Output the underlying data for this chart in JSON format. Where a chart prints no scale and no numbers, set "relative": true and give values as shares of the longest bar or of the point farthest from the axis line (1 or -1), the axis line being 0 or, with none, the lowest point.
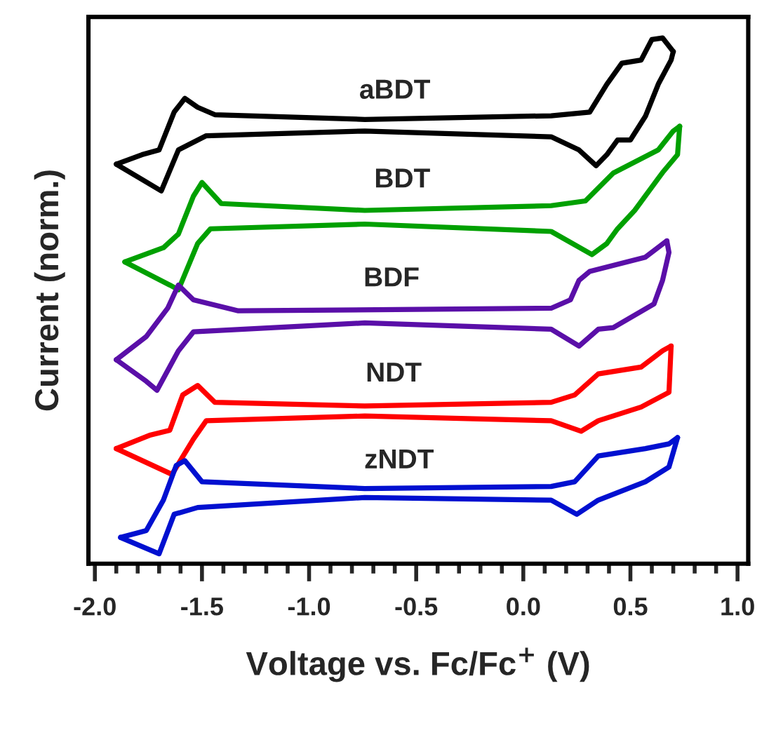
{
  "chart_data": {
    "type": "line",
    "relative": true,
    "xlabel": "Voltage vs. Fc/Fc$^{+}$ (V)",
    "ylabel": "Current (norm.)",
    "xlim": [
      -2.03,
      1.05
    ],
    "xticks": [
      {
        "value": -2,
        "label": "-2.0"
      },
      -1.5,
      {
        "value": -1,
        "label": "-1.0"
      },
      -0.5,
      {
        "value": 0,
        "label": "0.0"
      },
      0.5,
      {
        "value": 1,
        "label": "1.0"
      }
    ],
    "grid": false,
    "legend": false,
    "tick_labels": "x",
    "marker": "none",
    "line_style": "solid",
    "series": [
      {
        "color": "#000000",
        "x": [
          -1.9,
          -1.69,
          -1.61,
          -1.48,
          -0.74,
          0.13,
          0.26,
          0.34,
          0.39,
          0.44,
          0.5,
          0.57,
          0.63,
          0.69,
          0.7
        ],
        "values": [
          0.76,
          0.709,
          0.787,
          0.814,
          0.823,
          0.812,
          0.787,
          0.757,
          0.778,
          0.806,
          0.806,
          0.851,
          0.912,
          0.958,
          0.974
        ]
      },
      {
        "name": "aBDT",
        "color": "#000000",
        "x": [
          0.7,
          0.65,
          0.6,
          0.55,
          0.46,
          0.39,
          0.31,
          0.13,
          -0.74,
          -1.44,
          -1.52,
          -1.58,
          -1.63,
          -1.7,
          -1.78,
          -1.9
        ],
        "values": [
          0.974,
          1.0,
          0.997,
          0.958,
          0.952,
          0.912,
          0.859,
          0.852,
          0.845,
          0.854,
          0.868,
          0.885,
          0.859,
          0.787,
          0.778,
          0.76
        ]
      },
      {
        "color": "#00a000",
        "x": [
          -1.86,
          -1.65,
          -1.61,
          -1.52,
          -1.46,
          -0.74,
          0.13,
          0.32,
          0.39,
          0.44,
          0.52,
          0.65,
          0.72,
          0.73
        ],
        "values": [
          0.574,
          0.53,
          0.521,
          0.609,
          0.637,
          0.646,
          0.632,
          0.588,
          0.609,
          0.637,
          0.672,
          0.744,
          0.778,
          0.832
        ]
      },
      {
        "name": "BDT",
        "color": "#00a000",
        "x": [
          0.73,
          0.7,
          0.63,
          0.42,
          0.29,
          0.13,
          -0.74,
          -1.41,
          -1.5,
          -1.54,
          -1.61,
          -1.68,
          -1.86
        ],
        "values": [
          0.832,
          0.823,
          0.787,
          0.743,
          0.69,
          0.681,
          0.672,
          0.685,
          0.725,
          0.699,
          0.627,
          0.601,
          0.574
        ]
      },
      {
        "color": "#5a0fa8",
        "x": [
          -1.9,
          -1.76,
          -1.71,
          -1.61,
          -1.54,
          -0.74,
          0.13,
          0.26,
          0.35,
          0.42,
          0.61,
          0.65,
          0.68,
          0.67
        ],
        "values": [
          0.388,
          0.347,
          0.33,
          0.405,
          0.441,
          0.458,
          0.446,
          0.414,
          0.446,
          0.449,
          0.494,
          0.539,
          0.592,
          0.614
        ]
      },
      {
        "name": "BDF",
        "color": "#5a0fa8",
        "x": [
          0.67,
          0.57,
          0.31,
          0.26,
          0.22,
          0.13,
          -1.33,
          -1.54,
          -1.61,
          -1.66,
          -1.76,
          -1.9
        ],
        "values": [
          0.614,
          0.583,
          0.556,
          0.539,
          0.502,
          0.486,
          0.481,
          0.502,
          0.53,
          0.486,
          0.432,
          0.388
        ]
      },
      {
        "color": "#ff0000",
        "x": [
          -1.9,
          -1.64,
          -1.54,
          -1.48,
          -0.74,
          0.13,
          0.27,
          0.35,
          0.55,
          0.68,
          0.69
        ],
        "values": [
          0.219,
          0.17,
          0.237,
          0.272,
          0.281,
          0.272,
          0.252,
          0.272,
          0.298,
          0.326,
          0.414
        ]
      },
      {
        "name": "NDT",
        "color": "#ff0000",
        "x": [
          0.69,
          0.65,
          0.55,
          0.35,
          0.24,
          0.13,
          -0.74,
          -1.44,
          -1.52,
          -1.59,
          -1.65,
          -1.74,
          -1.9
        ],
        "values": [
          0.414,
          0.405,
          0.374,
          0.361,
          0.321,
          0.307,
          0.3,
          0.307,
          0.339,
          0.321,
          0.254,
          0.245,
          0.219
        ]
      },
      {
        "color": "#0010d0",
        "x": [
          -1.88,
          -1.7,
          -1.63,
          -1.52,
          -0.74,
          0.13,
          0.25,
          0.35,
          0.57,
          0.68,
          0.72
        ],
        "values": [
          0.05,
          0.019,
          0.094,
          0.107,
          0.126,
          0.121,
          0.094,
          0.121,
          0.156,
          0.184,
          0.24
        ]
      },
      {
        "name": "zNDT",
        "color": "#0010d0",
        "x": [
          0.72,
          0.68,
          0.57,
          0.35,
          0.24,
          0.13,
          -0.74,
          -1.5,
          -1.58,
          -1.62,
          -1.68,
          -1.76,
          -1.88
        ],
        "values": [
          0.24,
          0.228,
          0.219,
          0.205,
          0.156,
          0.147,
          0.143,
          0.156,
          0.196,
          0.187,
          0.121,
          0.063,
          0.05
        ]
      }
    ]
  }
}
